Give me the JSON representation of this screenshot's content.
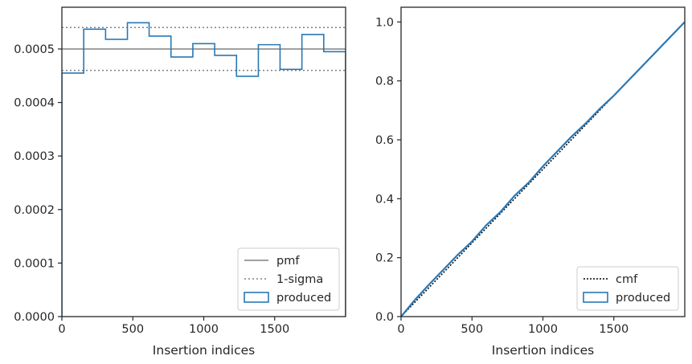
{
  "chart_data": [
    {
      "type": "step",
      "xlabel": "Insertion indices",
      "ylabel": "",
      "xlim": [
        0,
        2000
      ],
      "ylim": [
        0,
        0.000578
      ],
      "xticks": [
        0,
        500,
        1000,
        1500
      ],
      "yticks": [
        0.0,
        0.0001,
        0.0002,
        0.0003,
        0.0004,
        0.0005
      ],
      "ytick_labels": [
        "0.0000",
        "0.0001",
        "0.0002",
        "0.0003",
        "0.0004",
        "0.0005"
      ],
      "grid": false,
      "legend_position": "lower right",
      "colors": {
        "produced": "#2878b5",
        "reference": "#808080"
      },
      "reference_lines": [
        {
          "name": "pmf",
          "style": "solid",
          "y": 0.0005
        },
        {
          "name": "1-sigma",
          "style": "dotted",
          "y": 0.00054
        },
        {
          "style": "dotted",
          "y": 0.00046
        }
      ],
      "series": [
        {
          "name": "produced",
          "bin_edges": [
            0,
            154,
            308,
            462,
            615,
            769,
            923,
            1077,
            1231,
            1385,
            1538,
            1692,
            1846,
            2000
          ],
          "values": [
            0.000455,
            0.000537,
            0.000518,
            0.000549,
            0.000524,
            0.000485,
            0.00051,
            0.000488,
            0.000449,
            0.000508,
            0.000462,
            0.000527,
            0.000495
          ]
        }
      ]
    },
    {
      "type": "line",
      "xlabel": "Insertion indices",
      "ylabel": "",
      "xlim": [
        0,
        2000
      ],
      "ylim": [
        0,
        1.05
      ],
      "xticks": [
        0,
        500,
        1000,
        1500
      ],
      "yticks": [
        0.0,
        0.2,
        0.4,
        0.6,
        0.8,
        1.0
      ],
      "ytick_labels": [
        "0.0",
        "0.2",
        "0.4",
        "0.6",
        "0.8",
        "1.0"
      ],
      "grid": false,
      "legend_position": "lower right",
      "colors": {
        "produced": "#2878b5",
        "cmf": "#000000"
      },
      "series": [
        {
          "name": "cmf",
          "style": "dotted",
          "x": [
            0,
            2000
          ],
          "y": [
            0,
            1.0
          ]
        },
        {
          "name": "produced",
          "style": "step",
          "x": [
            0,
            100,
            200,
            300,
            400,
            500,
            600,
            700,
            800,
            900,
            1000,
            1100,
            1200,
            1300,
            1400,
            1500,
            1600,
            1700,
            1800,
            1900,
            2000
          ],
          "y": [
            0,
            0.058,
            0.11,
            0.16,
            0.21,
            0.255,
            0.31,
            0.355,
            0.41,
            0.455,
            0.51,
            0.56,
            0.61,
            0.655,
            0.705,
            0.75,
            0.8,
            0.85,
            0.9,
            0.95,
            1.0
          ]
        }
      ]
    }
  ]
}
